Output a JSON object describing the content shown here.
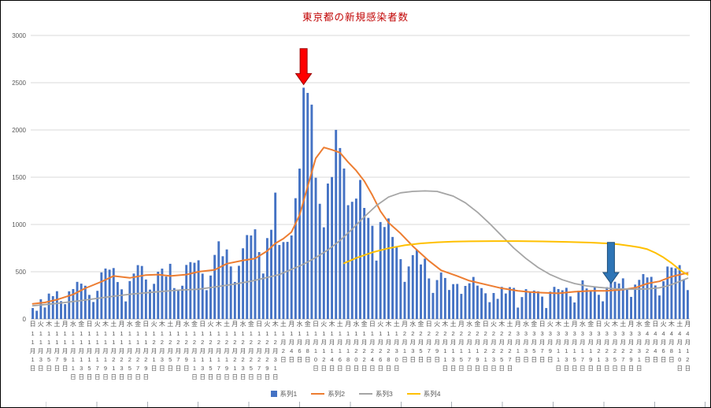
{
  "chart_data": {
    "type": "combo",
    "title": "東京都の新規感染者数",
    "title_color": "#C00000",
    "ylim": [
      0,
      3000
    ],
    "yticks": [
      0,
      500,
      1000,
      1500,
      2000,
      2500,
      3000
    ],
    "grid": true,
    "legend_position": "bottom",
    "axis_label_format": "{m}月{d}日",
    "weekday_cycle": [
      "日",
      "月",
      "火",
      "水",
      "木",
      "金",
      "土"
    ],
    "start_weekday": "日",
    "label_every": 2,
    "months": [
      {
        "month": 11,
        "days": 30
      },
      {
        "month": 12,
        "days": 31
      },
      {
        "month": 1,
        "days": 31
      },
      {
        "month": 2,
        "days": 28
      },
      {
        "month": 3,
        "days": 31
      },
      {
        "month": 4,
        "days": 12
      }
    ],
    "series": [
      {
        "name": "系列1",
        "type": "bar",
        "color": "#4472C4",
        "values": [
          116,
          87,
          209,
          122,
          269,
          242,
          294,
          189,
          157,
          293,
          317,
          393,
          374,
          352,
          255,
          180,
          298,
          493,
          534,
          522,
          539,
          391,
          314,
          186,
          401,
          481,
          570,
          561,
          418,
          311,
          372,
          500,
          533,
          449,
          584,
          327,
          299,
          352,
          572,
          602,
          595,
          621,
          480,
          305,
          460,
          678,
          822,
          664,
          736,
          556,
          392,
          563,
          748,
          888,
          884,
          949,
          708,
          481,
          856,
          944,
          1337,
          783,
          814,
          816,
          884,
          1278,
          1591,
          2447,
          2392,
          2268,
          1494,
          1219,
          970,
          1433,
          1502,
          2001,
          1809,
          1592,
          1204,
          1240,
          1274,
          1471,
          1175,
          1070,
          986,
          618,
          1026,
          973,
          1064,
          868,
          769,
          633,
          393,
          556,
          676,
          734,
          577,
          639,
          429,
          276,
          412,
          491,
          434,
          307,
          369,
          371,
          266,
          350,
          378,
          445,
          353,
          327,
          272,
          178,
          275,
          213,
          340,
          270,
          337,
          329,
          121,
          232,
          316,
          279,
          301,
          293,
          237,
          116,
          290,
          340,
          317,
          304,
          330,
          239,
          175,
          300,
          409,
          323,
          303,
          342,
          256,
          187,
          337,
          420,
          394,
          376,
          430,
          313,
          234,
          364,
          414,
          475,
          440,
          446,
          355,
          249,
          399,
          555,
          545,
          537,
          570,
          421,
          306
        ]
      },
      {
        "name": "系列2",
        "type": "line",
        "color": "#ED7D31",
        "width": 2,
        "points": [
          [
            0,
            160
          ],
          [
            3,
            175
          ],
          [
            6,
            205
          ],
          [
            10,
            260
          ],
          [
            13,
            325
          ],
          [
            17,
            395
          ],
          [
            20,
            455
          ],
          [
            24,
            435
          ],
          [
            28,
            465
          ],
          [
            31,
            470
          ],
          [
            34,
            455
          ],
          [
            38,
            470
          ],
          [
            41,
            500
          ],
          [
            45,
            520
          ],
          [
            48,
            585
          ],
          [
            52,
            620
          ],
          [
            55,
            640
          ],
          [
            58,
            720
          ],
          [
            60,
            800
          ],
          [
            62,
            850
          ],
          [
            64,
            920
          ],
          [
            66,
            1100
          ],
          [
            68,
            1400
          ],
          [
            70,
            1700
          ],
          [
            72,
            1815
          ],
          [
            74,
            1790
          ],
          [
            76,
            1760
          ],
          [
            78,
            1660
          ],
          [
            80,
            1570
          ],
          [
            82,
            1460
          ],
          [
            84,
            1310
          ],
          [
            86,
            1140
          ],
          [
            88,
            1020
          ],
          [
            91,
            905
          ],
          [
            94,
            770
          ],
          [
            98,
            615
          ],
          [
            101,
            515
          ],
          [
            105,
            455
          ],
          [
            108,
            405
          ],
          [
            112,
            365
          ],
          [
            116,
            325
          ],
          [
            120,
            298
          ],
          [
            123,
            285
          ],
          [
            126,
            278
          ],
          [
            130,
            272
          ],
          [
            134,
            288
          ],
          [
            138,
            298
          ],
          [
            142,
            298
          ],
          [
            146,
            312
          ],
          [
            149,
            330
          ],
          [
            152,
            375
          ],
          [
            155,
            398
          ],
          [
            158,
            448
          ],
          [
            161,
            478
          ],
          [
            162,
            487
          ]
        ]
      },
      {
        "name": "系列3",
        "type": "line",
        "color": "#A5A5A5",
        "width": 1.8,
        "points": [
          [
            0,
            140
          ],
          [
            6,
            165
          ],
          [
            12,
            195
          ],
          [
            18,
            230
          ],
          [
            24,
            262
          ],
          [
            30,
            285
          ],
          [
            36,
            305
          ],
          [
            41,
            315
          ],
          [
            46,
            345
          ],
          [
            50,
            370
          ],
          [
            54,
            400
          ],
          [
            58,
            440
          ],
          [
            61,
            470
          ],
          [
            64,
            525
          ],
          [
            67,
            580
          ],
          [
            70,
            650
          ],
          [
            73,
            730
          ],
          [
            76,
            830
          ],
          [
            79,
            950
          ],
          [
            82,
            1080
          ],
          [
            85,
            1200
          ],
          [
            88,
            1290
          ],
          [
            91,
            1335
          ],
          [
            94,
            1350
          ],
          [
            97,
            1355
          ],
          [
            100,
            1350
          ],
          [
            104,
            1300
          ],
          [
            107,
            1230
          ],
          [
            110,
            1130
          ],
          [
            113,
            1010
          ],
          [
            116,
            880
          ],
          [
            119,
            750
          ],
          [
            122,
            640
          ],
          [
            125,
            545
          ],
          [
            128,
            470
          ],
          [
            131,
            415
          ],
          [
            134,
            375
          ],
          [
            137,
            350
          ],
          [
            140,
            335
          ],
          [
            144,
            320
          ],
          [
            148,
            315
          ],
          [
            152,
            318
          ],
          [
            155,
            330
          ],
          [
            157,
            350
          ],
          [
            159,
            380
          ],
          [
            161,
            415
          ],
          [
            162,
            432
          ]
        ]
      },
      {
        "name": "系列4",
        "type": "line",
        "color": "#FFC000",
        "width": 2,
        "points": [
          [
            77,
            590
          ],
          [
            80,
            645
          ],
          [
            84,
            705
          ],
          [
            88,
            748
          ],
          [
            92,
            780
          ],
          [
            96,
            800
          ],
          [
            100,
            812
          ],
          [
            104,
            818
          ],
          [
            108,
            822
          ],
          [
            114,
            824
          ],
          [
            120,
            824
          ],
          [
            126,
            821
          ],
          [
            132,
            816
          ],
          [
            138,
            808
          ],
          [
            142,
            800
          ],
          [
            145,
            790
          ],
          [
            148,
            772
          ],
          [
            150,
            758
          ],
          [
            152,
            738
          ],
          [
            154,
            700
          ],
          [
            156,
            652
          ],
          [
            158,
            592
          ],
          [
            160,
            522
          ],
          [
            161,
            492
          ],
          [
            162,
            468
          ]
        ]
      }
    ],
    "annotations": [
      {
        "name": "red-down-arrow",
        "shape": "down-arrow",
        "color": "#FF0000",
        "stroke": "#990000",
        "day_index": 67,
        "value_from": 2860,
        "value_to": 2480
      },
      {
        "name": "blue-down-arrow",
        "shape": "down-arrow",
        "color": "#2E75B6",
        "stroke": "#1F4E79",
        "day_index": 143,
        "value_from": 810,
        "value_to": 375
      }
    ],
    "axis_text_color": "#595959",
    "gridline_color": "#D9D9D9",
    "axis_line_color": "#BFBFBF"
  }
}
